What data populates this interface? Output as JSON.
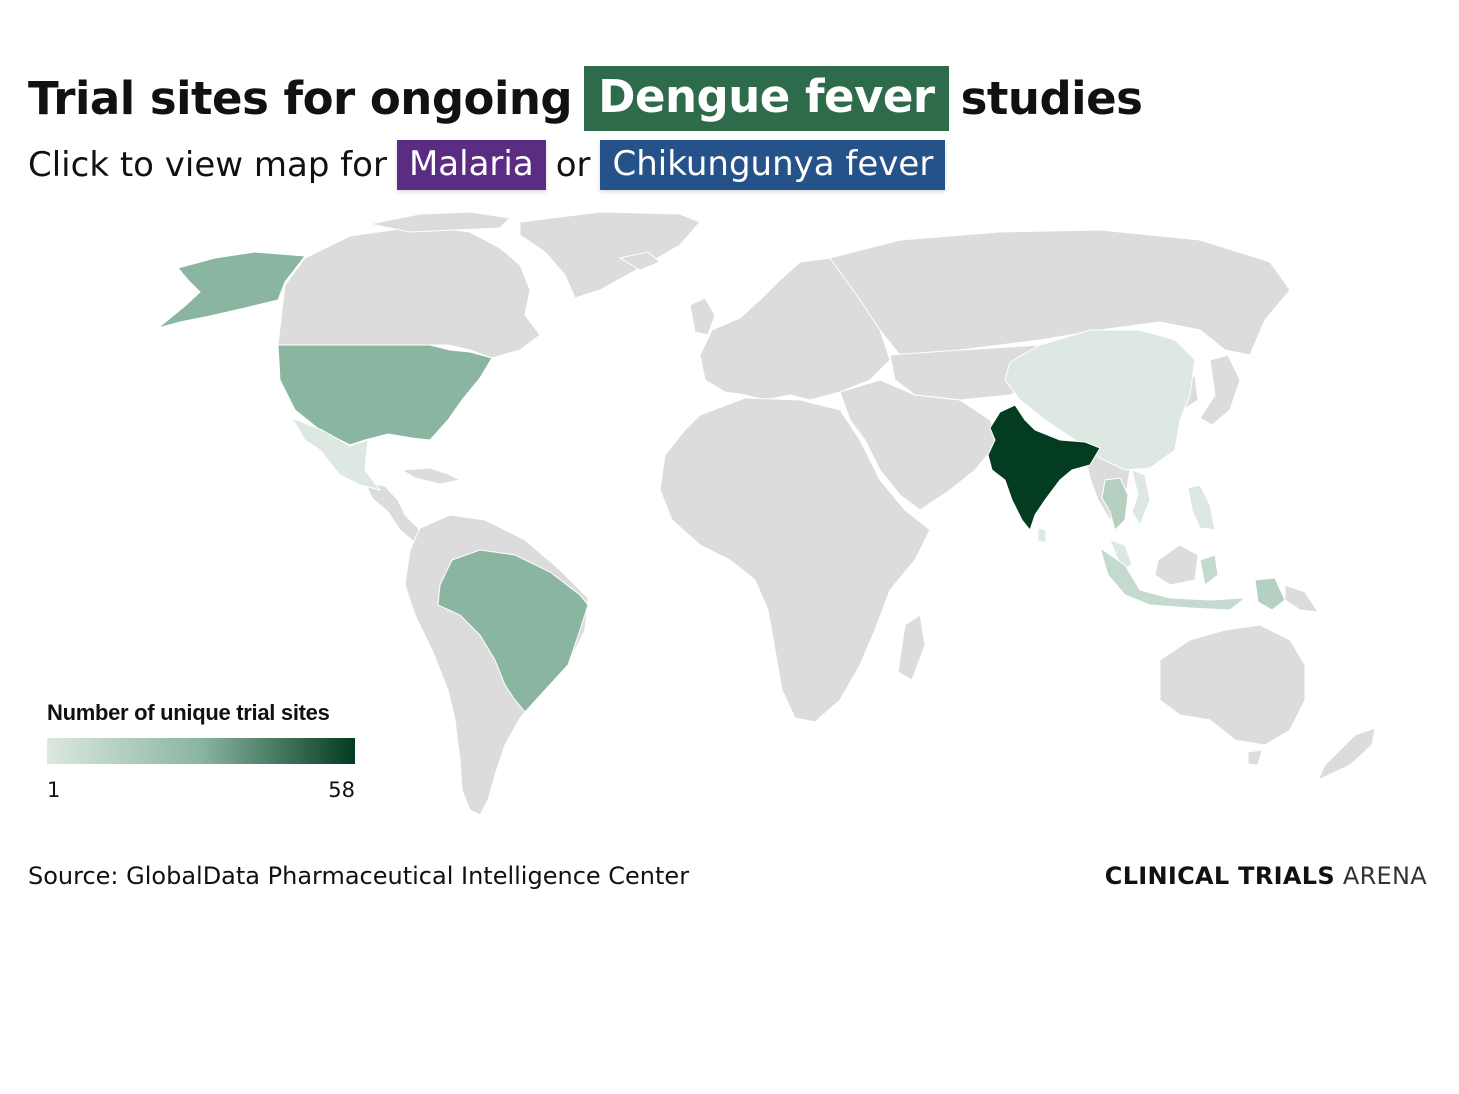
{
  "header": {
    "title_before": "Trial sites for ongoing",
    "title_highlight": "Dengue fever",
    "title_after": "studies",
    "subtitle_prefix": "Click to view map for",
    "link_malaria": "Malaria",
    "subtitle_or": "or",
    "link_chikungunya": "Chikungunya fever"
  },
  "colors": {
    "dengue": "#2e6b4a",
    "malaria": "#5b2d82",
    "chikungunya": "#245289",
    "land": "#dcdcdc",
    "scale_min": "#dce8e1",
    "scale_mid": "#8ab5a0",
    "scale_max": "#033c20"
  },
  "legend": {
    "title": "Number of unique trial sites",
    "min_label": "1",
    "max_label": "58",
    "min_value": 1,
    "max_value": 58
  },
  "footer": {
    "source": "Source: GlobalData Pharmaceutical Intelligence Center",
    "brand_bold": "CLINICAL TRIALS",
    "brand_light": "ARENA"
  },
  "map_data": {
    "highlighted_countries": [
      {
        "name": "India",
        "value": 58
      },
      {
        "name": "United States",
        "value": 20
      },
      {
        "name": "Brazil",
        "value": 20
      },
      {
        "name": "Mexico",
        "value": 5
      },
      {
        "name": "China",
        "value": 5
      },
      {
        "name": "Thailand",
        "value": 8
      },
      {
        "name": "Vietnam",
        "value": 4
      },
      {
        "name": "Malaysia",
        "value": 5
      },
      {
        "name": "Indonesia",
        "value": 6
      },
      {
        "name": "Philippines",
        "value": 4
      },
      {
        "name": "Papua New Guinea",
        "value": 8
      },
      {
        "name": "Sri Lanka",
        "value": 4
      }
    ]
  }
}
